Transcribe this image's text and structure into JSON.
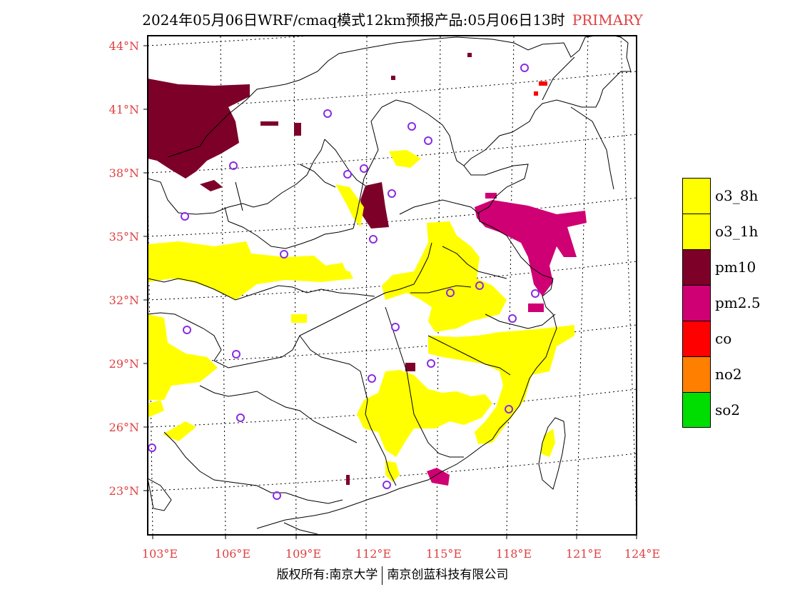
{
  "title": {
    "main": "2024年05月06日WRF/cmaq模式12km预报产品:05月06日13时",
    "tag": "PRIMARY"
  },
  "map": {
    "lat_labels": [
      "44°N",
      "41°N",
      "38°N",
      "35°N",
      "32°N",
      "29°N",
      "26°N",
      "23°N"
    ],
    "lon_labels": [
      "103°E",
      "106°E",
      "109°E",
      "112°E",
      "115°E",
      "118°E",
      "121°E",
      "124°E"
    ],
    "label_color": "#e04040"
  },
  "legend": [
    {
      "label": "o3_8h",
      "color": "#ffff00"
    },
    {
      "label": "o3_1h",
      "color": "#ffff00"
    },
    {
      "label": "pm10",
      "color": "#7d0029"
    },
    {
      "label": "pm2.5",
      "color": "#cf0073"
    },
    {
      "label": "co",
      "color": "#ff0000"
    },
    {
      "label": "no2",
      "color": "#ff7f00"
    },
    {
      "label": "so2",
      "color": "#00dd00"
    }
  ],
  "footer": {
    "left": "版权所有:南京大学",
    "right": "南京创蓝科技有限公司"
  }
}
